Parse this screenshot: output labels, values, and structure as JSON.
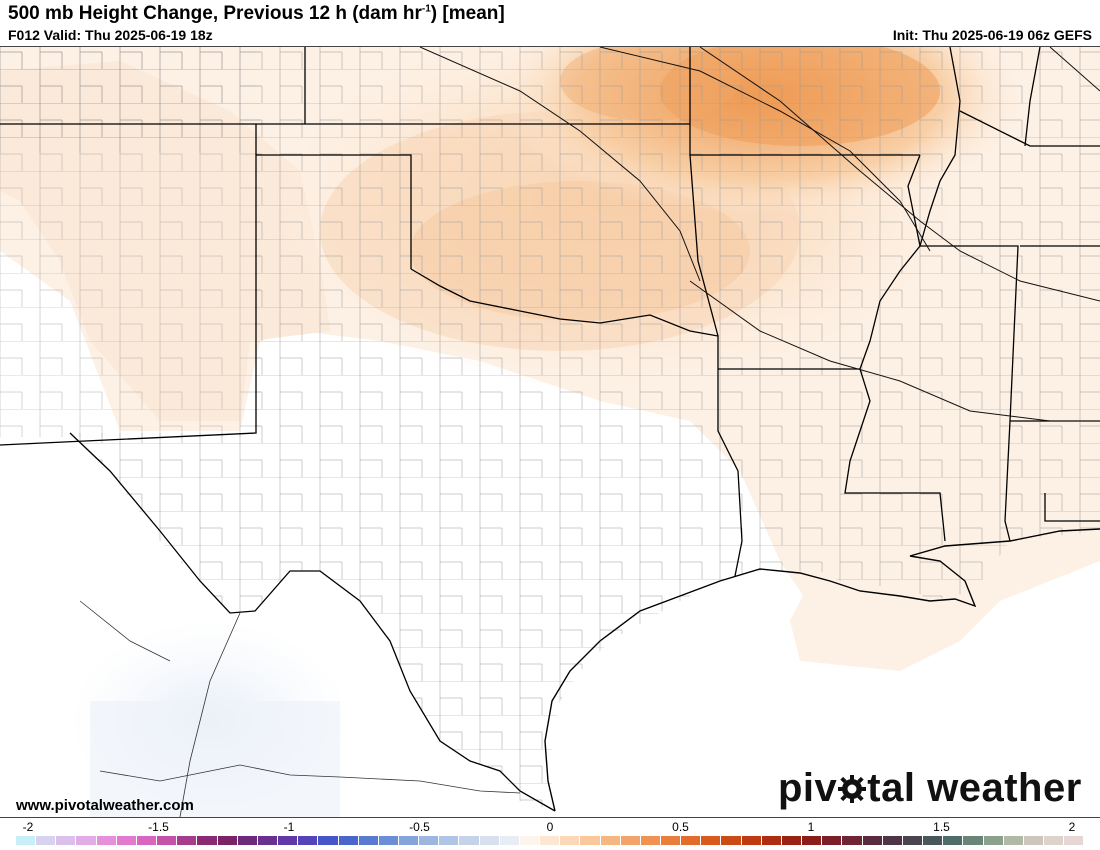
{
  "header": {
    "title_main": "500 mb Height Change, Previous 12 h (dam hr",
    "title_sup": "-1",
    "title_end": ") [mean]",
    "valid": "F012 Valid: Thu 2025-06-19 18z",
    "init": "Init: Thu 2025-06-19 06z GEFS"
  },
  "footer": {
    "website": "www.pivotalweather.com",
    "logo_left": "piv",
    "logo_right": "tal weather"
  },
  "colorbar": {
    "ticks": [
      {
        "value": -2,
        "label": "-2"
      },
      {
        "value": -1.5,
        "label": "-1.5"
      },
      {
        "value": -1,
        "label": "-1"
      },
      {
        "value": -0.5,
        "label": "-0.5"
      },
      {
        "value": 0,
        "label": "0"
      },
      {
        "value": 0.5,
        "label": "0.5"
      },
      {
        "value": 1,
        "label": "1"
      },
      {
        "value": 1.5,
        "label": "1.5"
      },
      {
        "value": 2,
        "label": "2"
      }
    ],
    "min": -2,
    "max": 2,
    "colors": [
      "#c8eef8",
      "#d6d2f0",
      "#dcc0ec",
      "#e2ace6",
      "#e690dc",
      "#e27ad0",
      "#d866c0",
      "#c452a8",
      "#a63c8c",
      "#8a2a74",
      "#7a2466",
      "#6e2a7a",
      "#6a3090",
      "#6238a6",
      "#5444b8",
      "#4656c8",
      "#4a66cc",
      "#5a7ad0",
      "#6c8ed6",
      "#86a4dc",
      "#9cb6e0",
      "#b0c4e6",
      "#c4d2ea",
      "#d8e0ef",
      "#e8edf5",
      "#fdf4ec",
      "#fde6d2",
      "#fcd8b8",
      "#f9c89c",
      "#f6b682",
      "#f3a46a",
      "#ef9252",
      "#e97e3c",
      "#e36c2a",
      "#d85a1c",
      "#cc4a14",
      "#be3a10",
      "#ae2c10",
      "#9a2214",
      "#8a1c1a",
      "#7c1e2a",
      "#6e2434",
      "#5a2a3e",
      "#4e3446",
      "#4a4450",
      "#48585a",
      "#4e6c68",
      "#6a8478",
      "#8ca08e",
      "#b0b8a6",
      "#ccc6bc",
      "#ded2cc",
      "#e6d6d6"
    ]
  }
}
